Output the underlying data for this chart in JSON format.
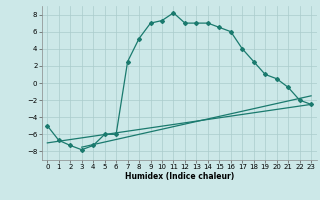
{
  "line1_x": [
    0,
    1,
    2,
    3,
    4,
    5,
    6,
    7,
    8,
    9,
    10,
    11,
    12,
    13,
    14,
    15,
    16,
    17,
    18,
    19,
    20,
    21,
    22,
    23
  ],
  "line1_y": [
    -5.0,
    -6.7,
    -7.3,
    -7.8,
    -7.3,
    -6.0,
    -6.0,
    2.5,
    5.2,
    7.0,
    7.3,
    8.2,
    7.0,
    7.0,
    7.0,
    6.5,
    6.0,
    4.0,
    2.5,
    1.0,
    0.5,
    -0.5,
    -2.0,
    -2.5
  ],
  "line2_x": [
    0,
    23
  ],
  "line2_y": [
    -7.0,
    -2.5
  ],
  "line3_x": [
    3,
    23
  ],
  "line3_y": [
    -7.5,
    -1.5
  ],
  "line_color": "#1a7a6e",
  "bg_color": "#cce8e8",
  "grid_color": "#aacccc",
  "xlabel": "Humidex (Indice chaleur)",
  "xlim": [
    -0.5,
    23.5
  ],
  "ylim": [
    -9,
    9
  ],
  "yticks": [
    -8,
    -6,
    -4,
    -2,
    0,
    2,
    4,
    6,
    8
  ],
  "xticks": [
    0,
    1,
    2,
    3,
    4,
    5,
    6,
    7,
    8,
    9,
    10,
    11,
    12,
    13,
    14,
    15,
    16,
    17,
    18,
    19,
    20,
    21,
    22,
    23
  ]
}
